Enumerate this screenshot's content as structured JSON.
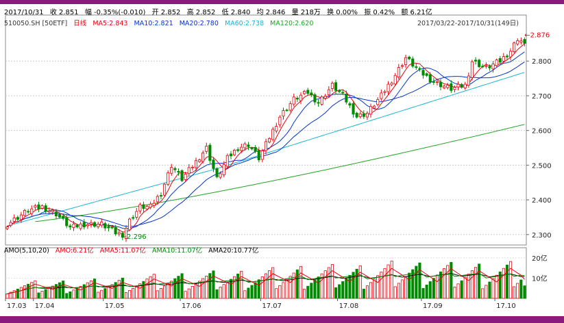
{
  "header": {
    "date": "2017/10/31",
    "close": "收 2.851",
    "change": "幅 -0.35%(-0.010)",
    "open": "开 2.852",
    "high": "高 2.852",
    "low": "低 2.840",
    "avg": "均 2.846",
    "volume": "量 218万",
    "turnover": "换 0.00%",
    "amplitude": "振 0.42%",
    "amount": "额 6.21亿"
  },
  "ma_legend": {
    "symbol": "510050.SH [50ETF]",
    "period": "日线",
    "ma5": "MA5:2.843",
    "ma10": "MA10:2.821",
    "ma20": "MA20:2.780",
    "ma60": "MA60:2.738",
    "ma120": "MA120:2.620"
  },
  "range_label": "2017/03/22-2017/10/31(149日)",
  "vol_legend": {
    "amo_def": "AMO(5,10,20)",
    "amo": "AMO:6.21亿",
    "ama5": "AMA5:11.07亿",
    "ama10": "AMA10:11.07亿",
    "ama20": "AMA20:10.77亿"
  },
  "colors": {
    "up": "#e8000b",
    "down": "#008a00",
    "ma5": "#e8000b",
    "ma10": "#0033cc",
    "ma20": "#0033cc",
    "ma60": "#17b5d6",
    "ma120": "#21a321",
    "ama5": "#e8000b",
    "ama10": "#008a00",
    "ama20": "#000000"
  },
  "chart_data": {
    "type": "candlestick",
    "x_ticks": [
      "17.03",
      "17.04",
      "17.05",
      "17.06",
      "17.07",
      "17.08",
      "17.09",
      "17.10"
    ],
    "price_axis": {
      "ticks": [
        "2.300",
        "2.400",
        "2.500",
        "2.600",
        "2.700",
        "2.800"
      ],
      "ylim": [
        2.27,
        2.905
      ]
    },
    "volume_axis": {
      "ticks": [
        "10亿",
        "20亿"
      ],
      "ylim": [
        0,
        23
      ]
    },
    "annotations": {
      "max_label": "2.876",
      "min_label": "2.296"
    },
    "waypoints": [
      [
        0,
        2.33
      ],
      [
        6,
        2.37
      ],
      [
        10,
        2.38
      ],
      [
        14,
        2.36
      ],
      [
        18,
        2.32
      ],
      [
        22,
        2.33
      ],
      [
        27,
        2.33
      ],
      [
        31,
        2.305
      ],
      [
        33,
        2.3
      ],
      [
        35,
        2.34
      ],
      [
        38,
        2.38
      ],
      [
        41,
        2.38
      ],
      [
        44,
        2.42
      ],
      [
        47,
        2.5
      ],
      [
        50,
        2.46
      ],
      [
        54,
        2.51
      ],
      [
        57,
        2.55
      ],
      [
        60,
        2.46
      ],
      [
        63,
        2.52
      ],
      [
        66,
        2.55
      ],
      [
        69,
        2.56
      ],
      [
        72,
        2.52
      ],
      [
        75,
        2.58
      ],
      [
        78,
        2.64
      ],
      [
        82,
        2.69
      ],
      [
        86,
        2.71
      ],
      [
        89,
        2.68
      ],
      [
        93,
        2.73
      ],
      [
        96,
        2.7
      ],
      [
        100,
        2.64
      ],
      [
        103,
        2.65
      ],
      [
        107,
        2.7
      ],
      [
        111,
        2.76
      ],
      [
        114,
        2.81
      ],
      [
        118,
        2.77
      ],
      [
        122,
        2.74
      ],
      [
        127,
        2.72
      ],
      [
        131,
        2.73
      ],
      [
        133,
        2.8
      ],
      [
        137,
        2.78
      ],
      [
        141,
        2.8
      ],
      [
        144,
        2.83
      ],
      [
        146,
        2.865
      ],
      [
        148,
        2.851
      ]
    ],
    "volume_profile": [
      [
        0,
        5
      ],
      [
        20,
        5.5
      ],
      [
        30,
        6
      ],
      [
        40,
        7
      ],
      [
        55,
        8
      ],
      [
        70,
        8.5
      ],
      [
        85,
        10
      ],
      [
        100,
        10
      ],
      [
        110,
        11
      ],
      [
        120,
        11
      ],
      [
        130,
        10.5
      ],
      [
        148,
        11
      ]
    ]
  }
}
